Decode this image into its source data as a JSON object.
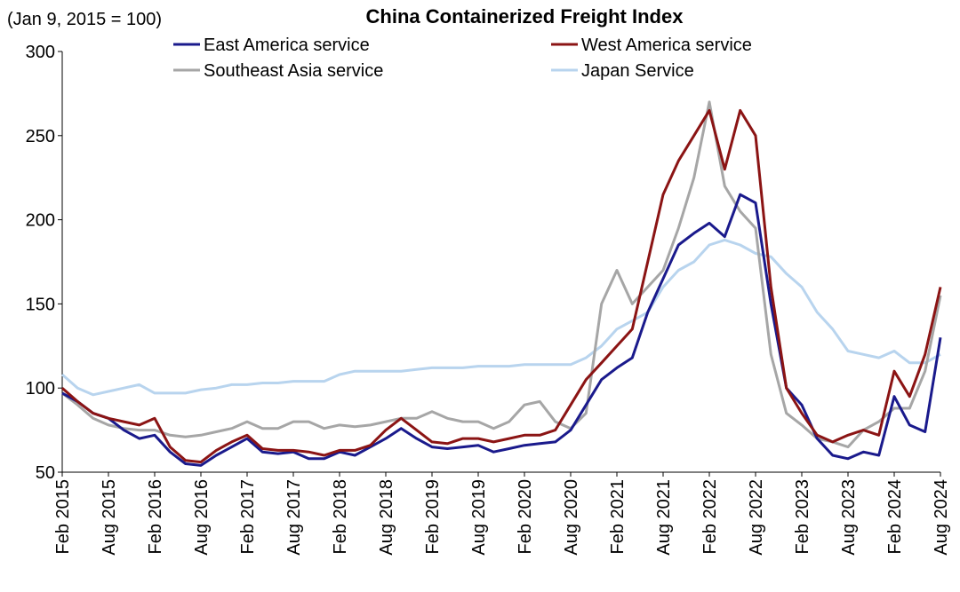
{
  "chart_data": {
    "type": "line",
    "title": "China Containerized Freight Index",
    "subtitle": "(Jan 9, 2015 = 100)",
    "categories": [
      "Feb 2015",
      null,
      null,
      "Aug 2015",
      null,
      null,
      "Feb 2016",
      null,
      null,
      "Aug 2016",
      null,
      null,
      "Feb 2017",
      null,
      null,
      "Aug 2017",
      null,
      null,
      "Feb 2018",
      null,
      null,
      "Aug 2018",
      null,
      null,
      "Feb 2019",
      null,
      null,
      "Aug 2019",
      null,
      null,
      "Feb 2020",
      null,
      null,
      "Aug 2020",
      null,
      null,
      "Feb 2021",
      null,
      null,
      "Aug 2021",
      null,
      null,
      "Feb 2022",
      null,
      null,
      "Aug 2022",
      null,
      null,
      "Feb 2023",
      null,
      null,
      "Aug 2023",
      null,
      null,
      "Feb 2024",
      null,
      null,
      "Aug 2024"
    ],
    "ylim": [
      50,
      300
    ],
    "yticks": [
      50,
      100,
      150,
      200,
      250,
      300
    ],
    "series": [
      {
        "name": "East America service",
        "color": "#1a1a8c",
        "values": [
          97,
          92,
          85,
          82,
          75,
          70,
          72,
          62,
          55,
          54,
          60,
          65,
          70,
          62,
          61,
          62,
          58,
          58,
          62,
          60,
          65,
          70,
          76,
          70,
          65,
          64,
          65,
          66,
          62,
          64,
          66,
          67,
          68,
          75,
          90,
          105,
          112,
          118,
          145,
          165,
          185,
          192,
          198,
          190,
          215,
          210,
          150,
          100,
          90,
          70,
          60,
          58,
          62,
          60,
          95,
          78,
          74,
          130
        ]
      },
      {
        "name": "West America service",
        "color": "#8b1414",
        "values": [
          100,
          92,
          85,
          82,
          80,
          78,
          82,
          65,
          57,
          56,
          63,
          68,
          72,
          64,
          63,
          63,
          62,
          60,
          63,
          63,
          66,
          75,
          82,
          75,
          68,
          67,
          70,
          70,
          68,
          70,
          72,
          72,
          75,
          90,
          105,
          115,
          125,
          135,
          175,
          215,
          235,
          250,
          265,
          230,
          265,
          250,
          160,
          100,
          85,
          72,
          68,
          72,
          75,
          72,
          110,
          95,
          120,
          160
        ]
      },
      {
        "name": "Southeast Asia service",
        "color": "#a6a6a6",
        "values": [
          97,
          90,
          82,
          78,
          76,
          75,
          75,
          72,
          71,
          72,
          74,
          76,
          80,
          76,
          76,
          80,
          80,
          76,
          78,
          77,
          78,
          80,
          82,
          82,
          86,
          82,
          80,
          80,
          76,
          80,
          90,
          92,
          80,
          76,
          85,
          150,
          170,
          150,
          160,
          170,
          195,
          225,
          270,
          220,
          205,
          195,
          120,
          85,
          78,
          70,
          68,
          65,
          75,
          80,
          88,
          88,
          110,
          155
        ]
      },
      {
        "name": "Japan Service",
        "color": "#b8d4ee",
        "values": [
          108,
          100,
          96,
          98,
          100,
          102,
          97,
          97,
          97,
          99,
          100,
          102,
          102,
          103,
          103,
          104,
          104,
          104,
          108,
          110,
          110,
          110,
          110,
          111,
          112,
          112,
          112,
          113,
          113,
          113,
          114,
          114,
          114,
          114,
          118,
          125,
          135,
          140,
          145,
          160,
          170,
          175,
          185,
          188,
          185,
          180,
          178,
          168,
          160,
          145,
          135,
          122,
          120,
          118,
          122,
          115,
          115,
          120
        ]
      }
    ]
  }
}
